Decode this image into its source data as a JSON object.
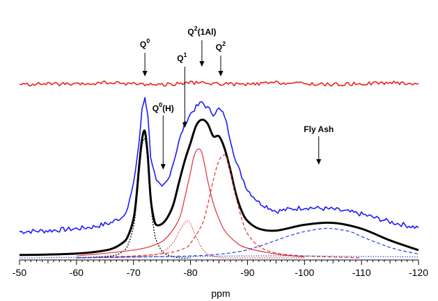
{
  "chart_data": {
    "type": "line",
    "title": "",
    "xlabel": "ppm",
    "ylabel": "",
    "xlim": [
      -50,
      -120
    ],
    "x_ticks": [
      -50,
      -60,
      -70,
      -80,
      -90,
      -100,
      -110,
      -120
    ],
    "x_tick_labels": [
      "-50",
      "-60",
      "-70",
      "-80",
      "-90",
      "-100",
      "-110",
      "-120"
    ],
    "grid": false,
    "legend": "none",
    "annotations": [
      {
        "label_main": "Q",
        "label_sup": "0",
        "label_tail": "",
        "x": -72.0
      },
      {
        "label_main": "Q",
        "label_sup": "0",
        "label_tail": "(H)",
        "x": -75.2
      },
      {
        "label_main": "Q",
        "label_sup": "1",
        "label_tail": "",
        "x": -79.0
      },
      {
        "label_main": "Q",
        "label_sup": "2",
        "label_tail": "(1Al)",
        "x": -82.0
      },
      {
        "label_main": "Q",
        "label_sup": "2",
        "label_tail": "",
        "x": -85.3
      },
      {
        "label_main": "Fly Ash",
        "label_sup": "",
        "label_tail": "",
        "x": -102.5
      }
    ],
    "colors": {
      "experimental": "#1a1aff",
      "fit": "#000000",
      "components": "#e03030",
      "residual": "#e82020",
      "fly_ash": "#2040e0"
    },
    "series": [
      {
        "style": "blue-solid",
        "x": [
          -50,
          -55,
          -60,
          -63,
          -66,
          -68,
          -69,
          -70,
          -71,
          -71.5,
          -72,
          -72.5,
          -73,
          -74,
          -75,
          -76,
          -77,
          -78,
          -79,
          -80,
          -81,
          -82,
          -83,
          -84,
          -85,
          -86,
          -87,
          -88,
          -90,
          -92,
          -95,
          -100,
          -105,
          -110,
          -115,
          -120
        ],
        "y": [
          0.27,
          0.28,
          0.3,
          0.32,
          0.36,
          0.42,
          0.52,
          0.75,
          1.2,
          1.52,
          1.65,
          1.48,
          1.05,
          0.78,
          0.72,
          0.8,
          0.98,
          1.2,
          1.38,
          1.48,
          1.55,
          1.6,
          1.54,
          1.48,
          1.53,
          1.46,
          1.22,
          0.98,
          0.7,
          0.57,
          0.48,
          0.52,
          0.5,
          0.45,
          0.37,
          0.31
        ]
      },
      {
        "style": "black-thick",
        "x": [
          -50,
          -55,
          -60,
          -63,
          -66,
          -68,
          -69,
          -70,
          -70.5,
          -71,
          -71.5,
          -72,
          -72.5,
          -73,
          -73.5,
          -74,
          -75,
          -76,
          -77,
          -78,
          -79,
          -80,
          -81,
          -82,
          -83,
          -84,
          -85,
          -86,
          -87,
          -88,
          -89,
          -90,
          -92,
          -95,
          -100,
          -105,
          -110,
          -115,
          -120
        ],
        "y": [
          0.03,
          0.035,
          0.045,
          0.06,
          0.09,
          0.15,
          0.22,
          0.4,
          0.62,
          0.95,
          1.22,
          1.3,
          1.05,
          0.62,
          0.42,
          0.34,
          0.35,
          0.42,
          0.55,
          0.78,
          1.0,
          1.18,
          1.36,
          1.42,
          1.38,
          1.25,
          1.25,
          1.12,
          0.9,
          0.65,
          0.48,
          0.38,
          0.3,
          0.28,
          0.34,
          0.36,
          0.3,
          0.18,
          0.08
        ]
      },
      {
        "style": "black-dotted",
        "x": [
          -60,
          -66,
          -68,
          -69,
          -70,
          -70.5,
          -71,
          -71.5,
          -72,
          -72.5,
          -73,
          -73.5,
          -74,
          -75,
          -76,
          -78,
          -80
        ],
        "y": [
          0.0,
          0.02,
          0.06,
          0.13,
          0.32,
          0.55,
          0.88,
          1.15,
          1.22,
          1.0,
          0.58,
          0.32,
          0.18,
          0.07,
          0.03,
          0.0,
          0.0
        ]
      },
      {
        "style": "red-solid",
        "x": [
          -60,
          -70,
          -74,
          -76,
          -78,
          -79,
          -80,
          -80.5,
          -81,
          -81.5,
          -82,
          -82.5,
          -83,
          -84,
          -85,
          -86,
          -88,
          -90,
          -95,
          -100
        ],
        "y": [
          0.02,
          0.08,
          0.14,
          0.22,
          0.4,
          0.62,
          0.88,
          1.02,
          1.1,
          1.12,
          1.08,
          0.95,
          0.8,
          0.56,
          0.4,
          0.28,
          0.16,
          0.1,
          0.04,
          0.01
        ]
      },
      {
        "style": "red-dashed",
        "x": [
          -60,
          -70,
          -76,
          -79,
          -80,
          -82,
          -83,
          -84,
          -85,
          -86,
          -86.5,
          -87,
          -88,
          -89,
          -90,
          -92,
          -95,
          -100,
          -110
        ],
        "y": [
          0.0,
          0.02,
          0.05,
          0.1,
          0.15,
          0.34,
          0.54,
          0.8,
          1.0,
          1.06,
          1.0,
          0.88,
          0.62,
          0.4,
          0.25,
          0.12,
          0.05,
          0.02,
          0.0
        ]
      },
      {
        "style": "red-dotted",
        "x": [
          -60,
          -72,
          -75,
          -77,
          -78,
          -79,
          -79.5,
          -80,
          -81,
          -82,
          -83,
          -84,
          -86,
          -90,
          -100
        ],
        "y": [
          0.0,
          0.02,
          0.06,
          0.16,
          0.27,
          0.36,
          0.38,
          0.35,
          0.22,
          0.1,
          0.04,
          0.02,
          0.0,
          0.0,
          0.0
        ]
      },
      {
        "style": "blue-dashed",
        "x": [
          -60,
          -80,
          -88,
          -92,
          -95,
          -98,
          -100,
          -103,
          -105,
          -108,
          -110,
          -113,
          -116,
          -120
        ],
        "y": [
          0.0,
          0.02,
          0.06,
          0.12,
          0.18,
          0.24,
          0.27,
          0.3,
          0.3,
          0.27,
          0.22,
          0.15,
          0.09,
          0.04
        ]
      },
      {
        "style": "blue-dotted",
        "x": [
          -50,
          -60,
          -70,
          -80,
          -90,
          -100,
          -110,
          -120
        ],
        "y": [
          0.0,
          0.005,
          0.01,
          0.015,
          0.02,
          0.02,
          0.015,
          0.01
        ]
      },
      {
        "style": "red-residual",
        "x": [
          -50,
          -55,
          -60,
          -65,
          -70,
          -75,
          -80,
          -85,
          -90,
          -95,
          -100,
          -105,
          -110,
          -115,
          -120
        ],
        "y": [
          1.78,
          1.79,
          1.78,
          1.8,
          1.79,
          1.78,
          1.8,
          1.79,
          1.78,
          1.8,
          1.79,
          1.78,
          1.79,
          1.8,
          1.79
        ]
      }
    ]
  }
}
